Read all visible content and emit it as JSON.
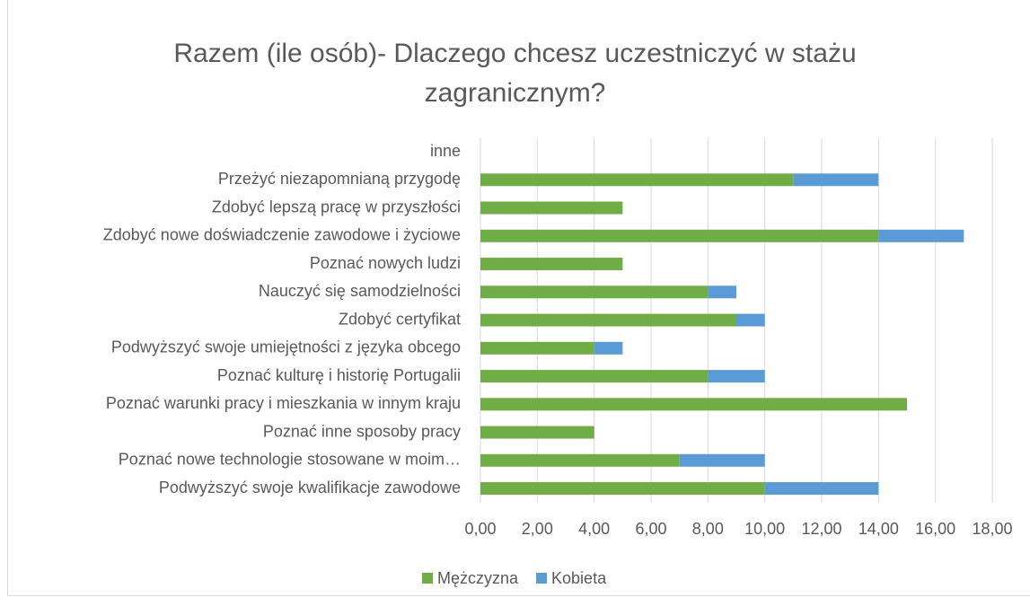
{
  "chart_data": {
    "type": "stacked_barh",
    "title": "Razem (ile osób)- Dlaczego chcesz uczestniczyć w stażu zagranicznym?",
    "categories": [
      "inne",
      "Przeżyć niezapomnianą przygodę",
      "Zdobyć lepszą pracę w przyszłości",
      "Zdobyć nowe doświadczenie zawodowe i życiowe",
      "Poznać nowych ludzi",
      "Nauczyć się samodzielności",
      "Zdobyć certyfikat",
      "Podwyższyć swoje umiejętności z języka obcego",
      "Poznać kulturę i historię Portugalii",
      "Poznać warunki pracy i mieszkania  w innym kraju",
      "Poznać inne sposoby pracy",
      "Poznać nowe technologie stosowane w moim…",
      "Podwyższyć swoje kwalifikacje zawodowe"
    ],
    "series": [
      {
        "name": "Mężczyzna",
        "color": "#70ad47",
        "values": [
          0,
          11,
          5,
          14,
          5,
          8,
          9,
          4,
          8,
          15,
          4,
          7,
          10
        ]
      },
      {
        "name": "Kobieta",
        "color": "#5b9bd5",
        "values": [
          0,
          3,
          0,
          3,
          0,
          1,
          1,
          1,
          2,
          0,
          0,
          3,
          4
        ]
      }
    ],
    "xlim": [
      0,
      18
    ],
    "xticks": [
      {
        "value": 0,
        "label": "0,00"
      },
      {
        "value": 2,
        "label": "2,00"
      },
      {
        "value": 4,
        "label": "4,00"
      },
      {
        "value": 6,
        "label": "6,00"
      },
      {
        "value": 8,
        "label": "8,00"
      },
      {
        "value": 10,
        "label": "10,00"
      },
      {
        "value": 12,
        "label": "12,00"
      },
      {
        "value": 14,
        "label": "14,00"
      },
      {
        "value": 16,
        "label": "16,00"
      },
      {
        "value": 18,
        "label": "18,00"
      }
    ],
    "grid": true,
    "legend": "bottom"
  }
}
